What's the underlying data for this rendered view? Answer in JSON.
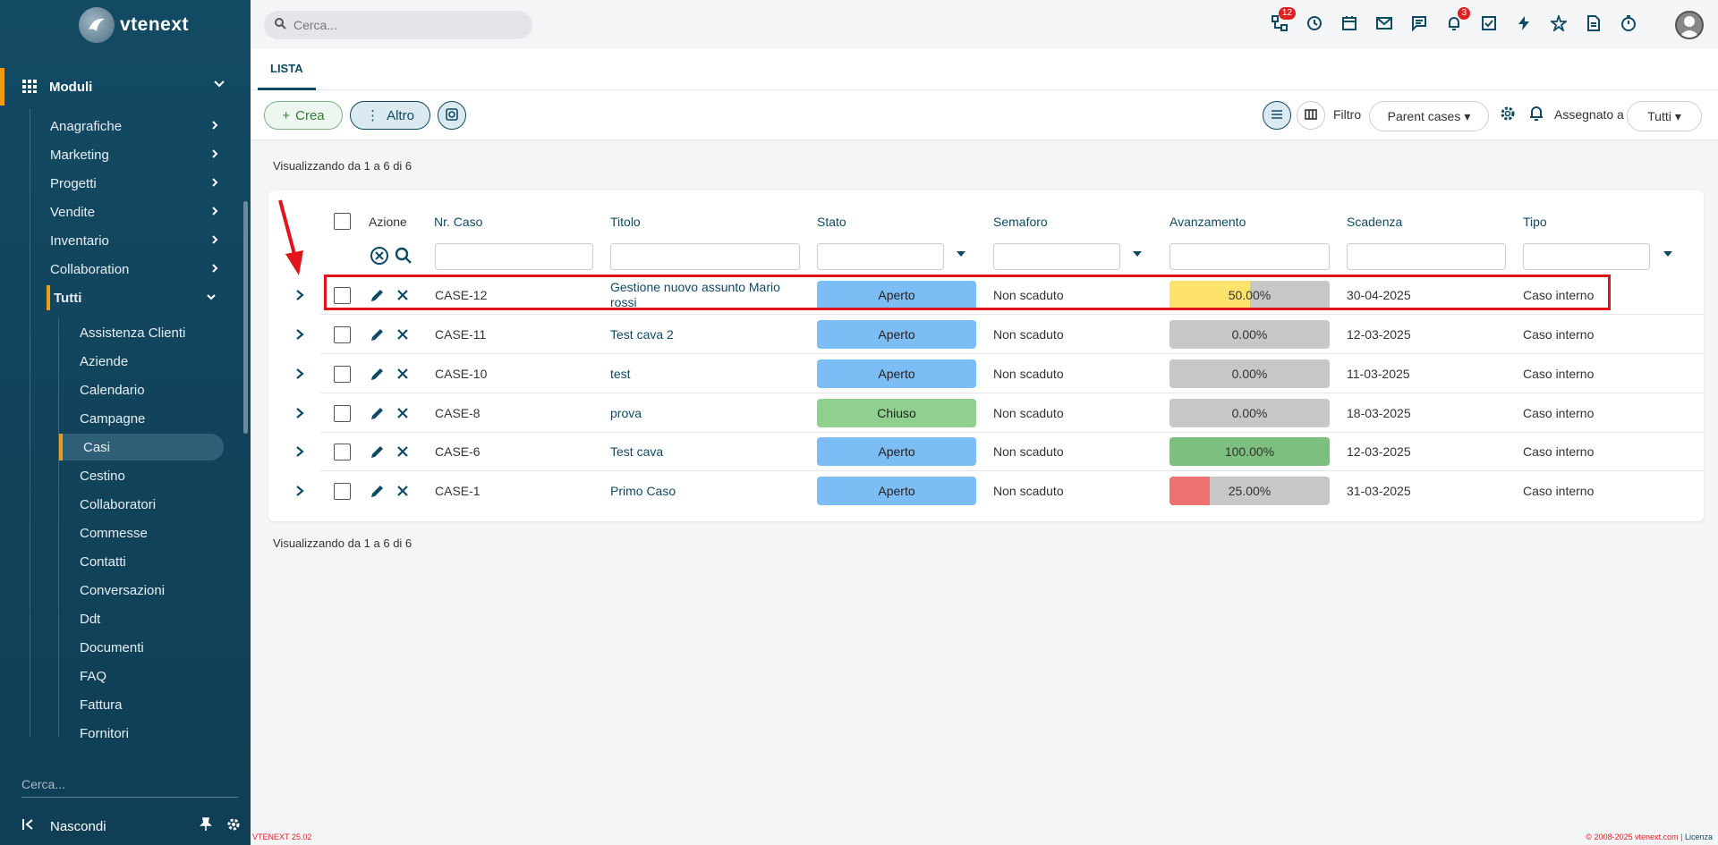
{
  "app": {
    "logo_text": "vtenext",
    "version": "VTENEXT 25.02",
    "copyright": "© 2008-2025 vtenext.com",
    "license_link": "Licenza"
  },
  "sidebar": {
    "module_label": "Moduli",
    "groups": [
      {
        "label": "Anagrafiche"
      },
      {
        "label": "Marketing"
      },
      {
        "label": "Progetti"
      },
      {
        "label": "Vendite"
      },
      {
        "label": "Inventario"
      },
      {
        "label": "Collaboration"
      },
      {
        "label": "Tutti"
      }
    ],
    "sub_items": [
      {
        "label": "Assistenza Clienti"
      },
      {
        "label": "Aziende"
      },
      {
        "label": "Calendario"
      },
      {
        "label": "Campagne"
      },
      {
        "label": "Casi"
      },
      {
        "label": "Cestino"
      },
      {
        "label": "Collaboratori"
      },
      {
        "label": "Commesse"
      },
      {
        "label": "Contatti"
      },
      {
        "label": "Conversazioni"
      },
      {
        "label": "Ddt"
      },
      {
        "label": "Documenti"
      },
      {
        "label": "FAQ"
      },
      {
        "label": "Fattura"
      },
      {
        "label": "Fornitori"
      }
    ],
    "active_sub": "Casi",
    "search_placeholder": "Cerca...",
    "hide_label": "Nascondi"
  },
  "topbar": {
    "search_placeholder": "Cerca...",
    "icons": [
      "processes-icon",
      "history-icon",
      "calendar-icon",
      "mail-icon",
      "chat-icon",
      "bell-icon",
      "tasks-icon",
      "lightning-icon",
      "star-icon",
      "document-icon",
      "timer-icon"
    ],
    "badges": {
      "processes": "12",
      "notifications": "3"
    }
  },
  "tabs": [
    {
      "label": "LISTA"
    }
  ],
  "toolbar": {
    "create_label": "Crea",
    "more_label": "Altro",
    "filter_label": "Filtro",
    "filter_value": "Parent cases",
    "assigned_label": "Assegnato a",
    "assigned_value": "Tutti"
  },
  "list": {
    "info_text": "Visualizzando da 1 a 6 di 6",
    "columns": [
      "Azione",
      "Nr. Caso",
      "Titolo",
      "Stato",
      "Semaforo",
      "Avanzamento",
      "Scadenza",
      "Tipo"
    ],
    "rows": [
      {
        "nr": "CASE-12",
        "titolo": "Gestione nuovo assunto Mario rossi",
        "stato": "Aperto",
        "semaforo": "Non scaduto",
        "avanzamento": "50.00%",
        "progress": 0.5,
        "scadenza": "30-04-2025",
        "tipo": "Caso interno"
      },
      {
        "nr": "CASE-11",
        "titolo": "Test cava 2",
        "stato": "Aperto",
        "semaforo": "Non scaduto",
        "avanzamento": "0.00%",
        "progress": 0,
        "scadenza": "12-03-2025",
        "tipo": "Caso interno"
      },
      {
        "nr": "CASE-10",
        "titolo": "test",
        "stato": "Aperto",
        "semaforo": "Non scaduto",
        "avanzamento": "0.00%",
        "progress": 0,
        "scadenza": "11-03-2025",
        "tipo": "Caso interno"
      },
      {
        "nr": "CASE-8",
        "titolo": "prova",
        "stato": "Chiuso",
        "semaforo": "Non scaduto",
        "avanzamento": "0.00%",
        "progress": 0,
        "scadenza": "18-03-2025",
        "tipo": "Caso interno"
      },
      {
        "nr": "CASE-6",
        "titolo": "Test cava",
        "stato": "Aperto",
        "semaforo": "Non scaduto",
        "avanzamento": "100.00%",
        "progress": 1,
        "scadenza": "12-03-2025",
        "tipo": "Caso interno"
      },
      {
        "nr": "CASE-1",
        "titolo": "Primo Caso",
        "stato": "Aperto",
        "semaforo": "Non scaduto",
        "avanzamento": "25.00%",
        "progress": 0.25,
        "scadenza": "31-03-2025",
        "tipo": "Caso interno"
      }
    ]
  },
  "colors": {
    "stato_aperto": "#7dbdf5",
    "stato_chiuso": "#8fd08f",
    "progress_50": "#fde36c",
    "progress_100": "#7cbf7e",
    "progress_25": "#ee7272",
    "accent": "#f29a1a",
    "highlight": "#e0141a"
  }
}
